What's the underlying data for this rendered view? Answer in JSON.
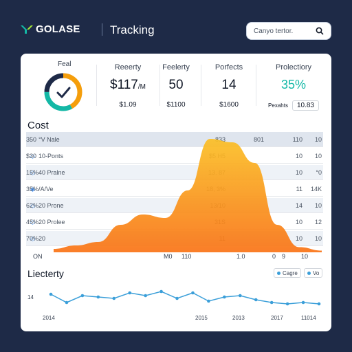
{
  "header": {
    "logo_text": "GOLASE",
    "logo_mark": "logo-mark",
    "title": "Tracking",
    "search_placeholder": "Canyo tertor."
  },
  "gauge": {
    "label": "Feal",
    "segments": [
      {
        "fraction": 0.42,
        "color": "#f59e0b"
      },
      {
        "fraction": 0.33,
        "color": "#14b8a6"
      },
      {
        "fraction": 0.25,
        "color": "#1e2a47"
      }
    ],
    "icon": "check-icon"
  },
  "kpis": [
    {
      "label": "Reeerty",
      "value": "$117",
      "value_suffix": "/M",
      "sub": "$1.09"
    },
    {
      "label": "Feelerty",
      "value": "50",
      "sub": "$1100"
    },
    {
      "label": "Porfects",
      "value": "14",
      "sub": "$1600"
    },
    {
      "label": "Prolectiory",
      "value": "35%",
      "sub_label": "Pexahts",
      "sub": "10.83"
    }
  ],
  "cost": {
    "title": "Cost",
    "header": [
      "",
      "°V Nale",
      "",
      "833",
      "801",
      "110",
      "10",
      "350"
    ],
    "rows": [
      [
        "◇",
        "10-Ponts",
        "",
        "$5 H5",
        "",
        "10",
        "10",
        "$30"
      ],
      [
        "◇",
        "40 Pralne",
        "",
        "13. 87",
        "",
        "10",
        "°0",
        "15%"
      ],
      [
        "◆",
        "/A/Ve",
        "",
        "18, 3%",
        "",
        "11",
        "14K",
        "35%"
      ],
      [
        "◇",
        "20 Prone",
        "",
        "13/10",
        "",
        "14",
        "10",
        "62%"
      ],
      [
        "◇",
        "20 Prolee",
        "",
        "31S",
        "",
        "10",
        "12",
        "45%"
      ],
      [
        "◇",
        "20",
        "",
        "11",
        "",
        "10",
        "10",
        "70%"
      ]
    ],
    "footer": [
      "ON",
      "M0",
      "110",
      "1.0",
      "0",
      "9",
      "10"
    ]
  },
  "chart_data": [
    {
      "type": "area",
      "title": "Cost",
      "x": [
        0,
        1,
        2,
        3,
        4,
        5,
        6,
        7,
        8,
        9,
        10,
        11,
        12
      ],
      "y": [
        0.2,
        0.4,
        0.6,
        1.6,
        2.2,
        2.0,
        3.6,
        6.6,
        6.4,
        5.2,
        1.6,
        0.3,
        0.1
      ],
      "ylim": [
        0,
        7
      ],
      "colors": [
        "#f97316",
        "#fbbf24"
      ]
    },
    {
      "type": "line",
      "title": "Liecterty",
      "x": [
        0,
        1,
        2,
        3,
        4,
        5,
        6,
        7,
        8,
        9,
        10,
        11,
        12,
        13,
        14,
        15,
        16,
        17
      ],
      "y": [
        14,
        11,
        13.5,
        13,
        12.5,
        14.5,
        13.5,
        15,
        12.5,
        14.5,
        11.5,
        13,
        13.5,
        12,
        11,
        10.5,
        11,
        10.5
      ],
      "ylim": [
        8,
        17
      ],
      "y_tick": "14",
      "x_ticks": [
        "2014",
        "2015",
        "2013",
        "2017",
        "11014"
      ],
      "color": "#3b9fd9"
    }
  ],
  "liberty": {
    "title": "Liecterty",
    "chips": [
      "Cagre",
      "Vo"
    ],
    "y_tick": "14",
    "x_ticks": [
      "2014",
      "2015",
      "2013",
      "2017",
      "11014"
    ]
  }
}
